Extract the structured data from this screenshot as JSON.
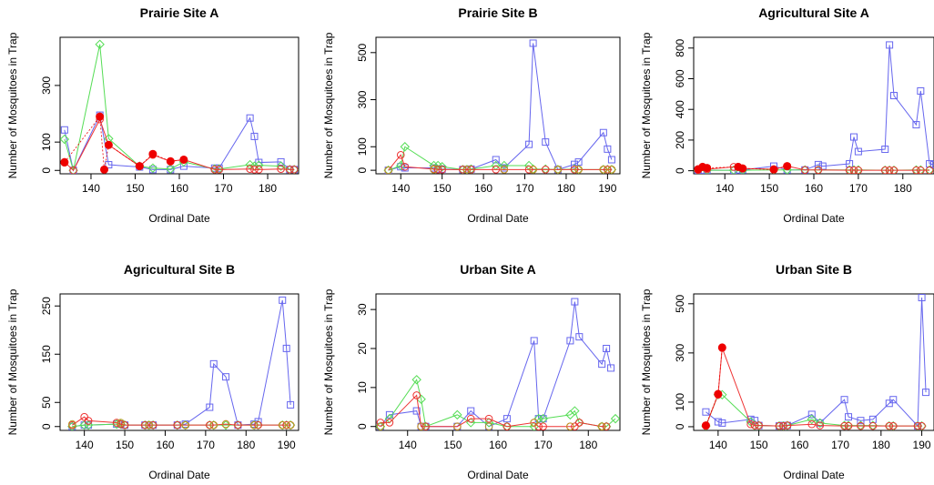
{
  "colors": {
    "blue": "#6666ee",
    "green": "#55dd55",
    "red": "#ee3333",
    "olive": "#bb9922",
    "filled_red": "#ee0000"
  },
  "chart_data": [
    {
      "type": "line",
      "title": "Prairie Site A",
      "xlabel": "Ordinal Date",
      "ylabel": "Number of Mosquitoes in Trap",
      "xlim": [
        133,
        187
      ],
      "ylim": [
        -12,
        470
      ],
      "xticks": [
        140,
        150,
        160,
        170,
        180
      ],
      "yticks": [
        0,
        100,
        300
      ],
      "series": [
        {
          "color": "blue",
          "marker": "square",
          "x": [
            134,
            136,
            142,
            144,
            151,
            154,
            158,
            161,
            168,
            169,
            176,
            177,
            178,
            183,
            185,
            186
          ],
          "y": [
            143,
            0,
            195,
            20,
            12,
            3,
            3,
            15,
            8,
            8,
            185,
            120,
            28,
            30,
            3,
            3
          ]
        },
        {
          "color": "green",
          "marker": "diamond",
          "x": [
            134,
            136,
            142,
            144,
            151,
            154,
            158,
            161,
            168,
            169,
            176,
            177,
            178,
            183,
            185,
            186
          ],
          "y": [
            110,
            0,
            445,
            112,
            15,
            8,
            5,
            30,
            5,
            5,
            20,
            15,
            18,
            15,
            3,
            3
          ]
        },
        {
          "color": "red",
          "marker": "circle",
          "x": [
            134,
            136,
            142,
            144,
            151,
            154,
            158,
            161,
            168,
            169,
            176,
            177,
            178,
            183,
            185,
            186
          ],
          "y": [
            30,
            0,
            180,
            90,
            15,
            55,
            32,
            38,
            3,
            3,
            5,
            3,
            3,
            5,
            3,
            3
          ]
        },
        {
          "color": "filled_red",
          "marker": "filled-circle",
          "x": [
            134,
            142,
            143,
            144,
            151,
            154,
            158,
            161
          ],
          "y": [
            28,
            190,
            3,
            90,
            15,
            58,
            32,
            38
          ]
        }
      ]
    },
    {
      "type": "line",
      "title": "Prairie Site B",
      "xlabel": "Ordinal Date",
      "ylabel": "Number of Mosquitoes in Trap",
      "xlim": [
        134,
        193
      ],
      "ylim": [
        -15,
        565
      ],
      "xticks": [
        140,
        150,
        160,
        170,
        180,
        190
      ],
      "yticks": [
        0,
        100,
        300,
        500
      ],
      "series": [
        {
          "color": "blue",
          "marker": "square",
          "x": [
            137,
            140,
            141,
            148,
            149,
            150,
            155,
            156,
            157,
            163,
            165,
            171,
            172,
            175,
            178,
            182,
            183,
            189,
            190,
            191
          ],
          "y": [
            0,
            15,
            10,
            10,
            5,
            5,
            3,
            3,
            5,
            45,
            10,
            110,
            540,
            120,
            3,
            25,
            35,
            160,
            90,
            45
          ]
        },
        {
          "color": "green",
          "marker": "diamond",
          "x": [
            137,
            140,
            141,
            148,
            149,
            150,
            155,
            156,
            157,
            163,
            165,
            171,
            172,
            175,
            178,
            182,
            183,
            189,
            190,
            191
          ],
          "y": [
            0,
            20,
            100,
            20,
            20,
            15,
            3,
            3,
            5,
            20,
            20,
            20,
            5,
            5,
            3,
            5,
            3,
            3,
            3,
            3
          ]
        },
        {
          "color": "red",
          "marker": "circle",
          "x": [
            137,
            140,
            141,
            148,
            149,
            150,
            155,
            156,
            157,
            163,
            165,
            171,
            172,
            175,
            178,
            182,
            183,
            189,
            190,
            191
          ],
          "y": [
            0,
            65,
            15,
            5,
            3,
            3,
            3,
            3,
            3,
            3,
            3,
            3,
            3,
            3,
            3,
            3,
            3,
            3,
            3,
            3
          ]
        },
        {
          "color": "olive",
          "marker": "circle",
          "x": [
            137,
            148,
            156,
            165,
            172,
            178,
            183,
            189,
            191
          ],
          "y": [
            0,
            3,
            3,
            3,
            3,
            3,
            3,
            3,
            3
          ]
        }
      ]
    },
    {
      "type": "line",
      "title": "Agricultural Site A",
      "xlabel": "Ordinal Date",
      "ylabel": "Number of Mosquitoes in Trap",
      "xlim": [
        133,
        187
      ],
      "ylim": [
        -20,
        870
      ],
      "xticks": [
        140,
        150,
        160,
        170,
        180
      ],
      "yticks": [
        0,
        200,
        400,
        600,
        800
      ],
      "series": [
        {
          "color": "blue",
          "marker": "square",
          "x": [
            134,
            135,
            136,
            142,
            143,
            144,
            151,
            154,
            158,
            161,
            162,
            168,
            169,
            170,
            176,
            177,
            178,
            183,
            184,
            186,
            187
          ],
          "y": [
            3,
            3,
            3,
            3,
            5,
            5,
            30,
            5,
            5,
            40,
            30,
            45,
            220,
            125,
            140,
            820,
            490,
            300,
            520,
            45,
            40
          ]
        },
        {
          "color": "green",
          "marker": "diamond",
          "x": [
            134,
            136,
            142,
            144,
            151,
            154,
            158,
            161,
            168,
            169,
            170,
            176,
            177,
            178,
            183,
            184,
            186
          ],
          "y": [
            3,
            3,
            3,
            3,
            5,
            5,
            5,
            5,
            5,
            5,
            5,
            3,
            3,
            3,
            5,
            5,
            5
          ]
        },
        {
          "color": "red",
          "marker": "circle",
          "x": [
            134,
            136,
            142,
            144,
            151,
            154,
            158,
            161,
            168,
            169,
            170,
            176,
            177,
            178,
            183,
            184,
            186
          ],
          "y": [
            5,
            10,
            25,
            15,
            10,
            30,
            5,
            5,
            3,
            3,
            3,
            3,
            3,
            3,
            3,
            3,
            3
          ]
        },
        {
          "color": "filled_red",
          "marker": "filled-circle",
          "x": [
            134,
            135,
            136,
            143,
            144,
            151,
            154
          ],
          "y": [
            10,
            25,
            18,
            25,
            15,
            8,
            30
          ]
        }
      ]
    },
    {
      "type": "line",
      "title": "Agricultural Site B",
      "xlabel": "Ordinal Date",
      "ylabel": "Number of Mosquitoes in Trap",
      "xlim": [
        134,
        193
      ],
      "ylim": [
        -8,
        275
      ],
      "xticks": [
        140,
        150,
        160,
        170,
        180,
        190
      ],
      "yticks": [
        0,
        50,
        150,
        250
      ],
      "series": [
        {
          "color": "blue",
          "marker": "square",
          "x": [
            137,
            140,
            141,
            148,
            149,
            150,
            155,
            156,
            157,
            163,
            165,
            171,
            172,
            175,
            178,
            182,
            183,
            189,
            190,
            191
          ],
          "y": [
            0,
            3,
            3,
            5,
            5,
            3,
            3,
            3,
            3,
            3,
            5,
            40,
            130,
            103,
            3,
            5,
            10,
            262,
            162,
            45
          ]
        },
        {
          "color": "green",
          "marker": "diamond",
          "x": [
            137,
            140,
            141,
            148,
            149,
            150,
            155,
            156,
            157,
            163,
            165,
            171,
            172,
            175,
            178,
            182,
            183,
            189,
            190,
            191
          ],
          "y": [
            0,
            3,
            3,
            5,
            5,
            3,
            3,
            3,
            3,
            3,
            3,
            3,
            3,
            3,
            3,
            3,
            3,
            3,
            3,
            3
          ]
        },
        {
          "color": "red",
          "marker": "circle",
          "x": [
            137,
            140,
            141,
            148,
            149,
            150,
            155,
            156,
            157,
            163,
            165,
            171,
            172,
            175,
            178,
            182,
            183,
            189,
            190,
            191
          ],
          "y": [
            3,
            20,
            12,
            8,
            5,
            3,
            3,
            3,
            3,
            3,
            3,
            3,
            3,
            5,
            3,
            3,
            3,
            3,
            3,
            3
          ]
        },
        {
          "color": "olive",
          "marker": "circle",
          "x": [
            137,
            149,
            156,
            165,
            172,
            175,
            182,
            189,
            191
          ],
          "y": [
            5,
            8,
            3,
            3,
            3,
            5,
            3,
            3,
            3
          ]
        }
      ]
    },
    {
      "type": "line",
      "title": "Urban Site A",
      "xlabel": "Ordinal Date",
      "ylabel": "Number of Mosquitoes in Trap",
      "xlim": [
        133,
        187
      ],
      "ylim": [
        -1,
        34
      ],
      "xticks": [
        140,
        150,
        160,
        170,
        180
      ],
      "yticks": [
        0,
        10,
        20,
        30
      ],
      "series": [
        {
          "color": "blue",
          "marker": "square",
          "x": [
            134,
            136,
            142,
            143,
            144,
            151,
            154,
            158,
            162,
            168,
            169,
            170,
            176,
            177,
            178,
            183,
            184,
            185
          ],
          "y": [
            0,
            3,
            4,
            0,
            0,
            0,
            4,
            0,
            2,
            22,
            2,
            2,
            22,
            32,
            23,
            16,
            20,
            15
          ]
        },
        {
          "color": "green",
          "marker": "diamond",
          "x": [
            134,
            136,
            142,
            143,
            144,
            151,
            154,
            158,
            162,
            168,
            169,
            170,
            176,
            177,
            178,
            183,
            184,
            186
          ],
          "y": [
            0,
            2,
            12,
            7,
            0,
            3,
            1,
            1,
            0,
            0,
            2,
            2,
            3,
            4,
            1,
            0,
            0,
            2
          ]
        },
        {
          "color": "red",
          "marker": "circle",
          "x": [
            134,
            136,
            142,
            143,
            144,
            151,
            154,
            158,
            162,
            168,
            169,
            170,
            176,
            177,
            178,
            183,
            184
          ],
          "y": [
            1,
            1,
            8,
            0,
            0,
            0,
            2,
            2,
            0,
            1,
            0,
            0,
            0,
            0,
            1,
            0,
            0
          ]
        },
        {
          "color": "olive",
          "marker": "circle",
          "x": [
            134,
            143,
            151,
            158,
            168,
            176,
            183
          ],
          "y": [
            0,
            0,
            0,
            0,
            1,
            0,
            0
          ]
        }
      ]
    },
    {
      "type": "line",
      "title": "Urban Site B",
      "xlabel": "Ordinal Date",
      "ylabel": "Number of Mosquitoes in Trap",
      "xlim": [
        134,
        193
      ],
      "ylim": [
        -15,
        540
      ],
      "xticks": [
        140,
        150,
        160,
        170,
        180,
        190
      ],
      "yticks": [
        0,
        100,
        300,
        500
      ],
      "series": [
        {
          "color": "blue",
          "marker": "square",
          "x": [
            137,
            140,
            141,
            148,
            149,
            150,
            155,
            156,
            157,
            163,
            165,
            171,
            172,
            175,
            178,
            182,
            183,
            189,
            190,
            191
          ],
          "y": [
            60,
            20,
            15,
            30,
            25,
            5,
            3,
            5,
            5,
            50,
            15,
            110,
            40,
            25,
            30,
            95,
            110,
            3,
            525,
            140
          ]
        },
        {
          "color": "green",
          "marker": "diamond",
          "x": [
            137,
            140,
            141,
            148,
            149,
            150,
            155,
            156,
            157,
            163,
            165,
            171,
            172,
            175,
            178,
            182,
            183,
            189,
            190
          ],
          "y": [
            3,
            130,
            130,
            20,
            5,
            5,
            3,
            3,
            5,
            30,
            15,
            5,
            5,
            5,
            5,
            3,
            3,
            3,
            3
          ]
        },
        {
          "color": "red",
          "marker": "circle",
          "x": [
            137,
            140,
            141,
            148,
            149,
            150,
            155,
            156,
            157,
            163,
            165,
            171,
            172,
            175,
            178,
            182,
            183,
            189,
            190
          ],
          "y": [
            3,
            130,
            320,
            10,
            5,
            5,
            3,
            3,
            5,
            10,
            5,
            3,
            3,
            3,
            3,
            3,
            3,
            3,
            3
          ]
        },
        {
          "color": "filled_red",
          "marker": "filled-circle",
          "x": [
            137,
            140,
            141
          ],
          "y": [
            5,
            133,
            322
          ]
        }
      ]
    }
  ]
}
